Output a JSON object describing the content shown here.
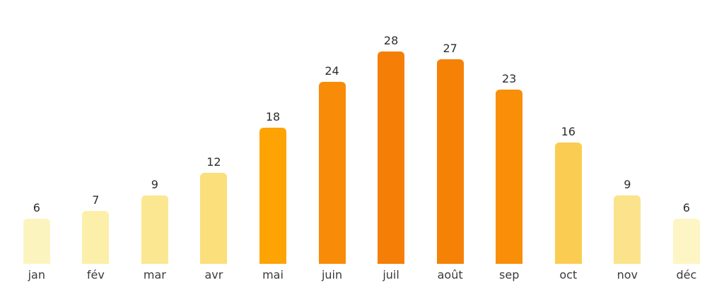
{
  "chart_data": {
    "type": "bar",
    "title": "",
    "xlabel": "",
    "ylabel": "",
    "categories": [
      "jan",
      "fév",
      "mar",
      "avr",
      "mai",
      "juin",
      "juil",
      "août",
      "sep",
      "oct",
      "nov",
      "déc"
    ],
    "values": [
      6,
      7,
      9,
      12,
      18,
      24,
      28,
      27,
      23,
      16,
      9,
      6
    ],
    "bar_colors": [
      "#FCF4BF",
      "#FCEFA9",
      "#FBE791",
      "#FBDF7B",
      "#FEA304",
      "#F88B07",
      "#F57E06",
      "#F58106",
      "#F98F09",
      "#FACD52",
      "#FBE38B",
      "#FDF5C3"
    ],
    "value_labels_shown": true,
    "ylim": [
      0,
      32
    ],
    "grid": false,
    "legend": "none",
    "axes_shown": false,
    "background_color": "#ffffff",
    "text_color": "#2d2d2d"
  }
}
